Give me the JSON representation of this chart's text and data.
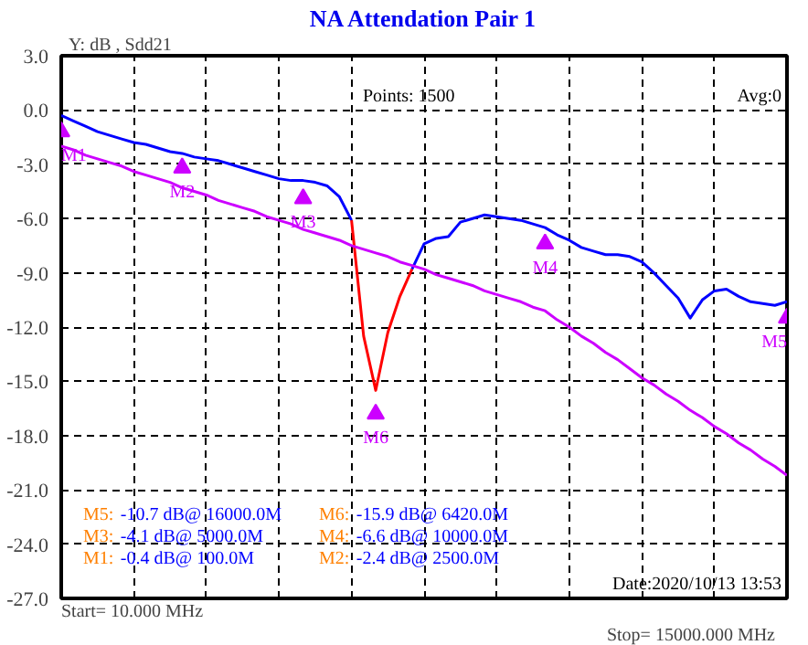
{
  "chart_data": {
    "type": "line",
    "title": "NA Attendation Pair 1",
    "ylabel": "Y: dB , Sdd21",
    "categories": [
      null,
      null,
      null,
      null,
      null,
      null,
      null,
      null,
      null,
      null,
      null,
      null,
      null,
      null,
      null,
      null,
      null,
      null,
      null,
      null,
      null,
      null,
      null,
      null,
      null,
      null,
      null,
      null,
      null,
      null,
      null,
      null,
      null,
      null,
      null,
      null,
      null,
      null,
      null,
      null,
      null,
      null,
      null,
      null,
      null,
      null,
      null,
      null,
      null,
      null,
      null,
      null,
      null,
      null,
      null,
      null,
      null,
      null,
      null,
      null,
      null
    ],
    "ylim": [
      -27,
      3
    ],
    "yticks": [
      {
        "value": 3,
        "label": "3.0"
      },
      {
        "value": 0,
        "label": "0.0"
      },
      {
        "value": -3,
        "label": "-3.0"
      },
      {
        "value": -6,
        "label": "-6.0"
      },
      {
        "value": -9,
        "label": "-9.0"
      },
      {
        "value": -12,
        "label": "-12.0"
      },
      {
        "value": -15,
        "label": "-15.0"
      },
      {
        "value": -18,
        "label": "-18.0"
      },
      {
        "value": -21,
        "label": "-21.0"
      },
      {
        "value": -24,
        "label": "-24.0"
      },
      {
        "value": -27,
        "label": "-27.0"
      }
    ],
    "grid": true,
    "line_style": "solid",
    "tick_labels": "y",
    "series": [
      {
        "color": "#0000ff",
        "values": [
          -0.3,
          -0.6,
          -0.9,
          -1.2,
          -1.4,
          -1.6,
          -1.8,
          -1.9,
          -2.1,
          -2.3,
          -2.4,
          -2.6,
          -2.7,
          -2.8,
          -3.0,
          -3.2,
          -3.4,
          -3.6,
          -3.8,
          -3.9,
          -3.9,
          -4.0,
          -4.2,
          -4.8,
          -6.1,
          null,
          null,
          null,
          null,
          -8.8,
          -7.4,
          -7.1,
          -7.0,
          -6.2,
          -6.0,
          -5.8,
          -5.9,
          -6.0,
          -6.1,
          -6.3,
          -6.5,
          -6.9,
          -7.2,
          -7.6,
          -7.8,
          -8.0,
          -8.0,
          -8.1,
          -8.4,
          -9.0,
          -9.7,
          -10.4,
          -11.5,
          -10.5,
          -10.0,
          -9.9,
          -10.3,
          -10.6,
          -10.7,
          -10.8,
          -10.6
        ]
      },
      {
        "color": "#ff0000",
        "values": [
          null,
          null,
          null,
          null,
          null,
          null,
          null,
          null,
          null,
          null,
          null,
          null,
          null,
          null,
          null,
          null,
          null,
          null,
          null,
          null,
          null,
          null,
          null,
          null,
          -6.1,
          -12.5,
          -15.5,
          -12.3,
          -10.3,
          -8.8,
          null,
          null,
          null,
          null,
          null,
          null,
          null,
          null,
          null,
          null,
          null,
          null,
          null,
          null,
          null,
          null,
          null,
          null,
          null,
          null,
          null,
          null,
          null,
          null,
          null,
          null,
          null,
          null,
          null,
          null,
          null
        ]
      },
      {
        "color": "#cc00ff",
        "values": [
          -2.0,
          -2.2,
          -2.5,
          -2.7,
          -2.9,
          -3.1,
          -3.4,
          -3.6,
          -3.8,
          -4.0,
          -4.3,
          -4.5,
          -4.7,
          -5.0,
          -5.2,
          -5.4,
          -5.6,
          -5.9,
          -6.1,
          -6.3,
          -6.6,
          -6.8,
          -7.0,
          -7.2,
          -7.5,
          -7.7,
          -7.9,
          -8.1,
          -8.4,
          -8.6,
          -8.8,
          -9.1,
          -9.3,
          -9.5,
          -9.7,
          -10.0,
          -10.2,
          -10.4,
          -10.6,
          -10.9,
          -11.1,
          -11.6,
          -12.0,
          -12.5,
          -12.9,
          -13.4,
          -13.8,
          -14.3,
          -14.8,
          -15.2,
          -15.7,
          -16.1,
          -16.6,
          -17.0,
          -17.5,
          -17.9,
          -18.4,
          -18.8,
          -19.3,
          -19.7,
          -20.2
        ]
      },
      {
        "type": "scatter",
        "marker": "triangle",
        "color": "#cc00ff",
        "values": [
          -1.2,
          null,
          null,
          null,
          null,
          null,
          null,
          null,
          null,
          null,
          -3.2,
          null,
          null,
          null,
          null,
          null,
          null,
          null,
          null,
          null,
          -4.9,
          null,
          null,
          null,
          null,
          null,
          -16.8,
          null,
          null,
          null,
          null,
          null,
          null,
          null,
          null,
          null,
          null,
          null,
          null,
          null,
          -7.4,
          null,
          null,
          null,
          null,
          null,
          null,
          null,
          null,
          null,
          null,
          null,
          null,
          null,
          null,
          null,
          null,
          null,
          null,
          null,
          -11.5
        ],
        "value_labels": [
          "M1",
          null,
          null,
          null,
          null,
          null,
          null,
          null,
          null,
          null,
          "M2",
          null,
          null,
          null,
          null,
          null,
          null,
          null,
          null,
          null,
          "M3",
          null,
          null,
          null,
          null,
          null,
          "M6",
          null,
          null,
          null,
          null,
          null,
          null,
          null,
          null,
          null,
          null,
          null,
          null,
          null,
          "M4",
          null,
          null,
          null,
          null,
          null,
          null,
          null,
          null,
          null,
          null,
          null,
          null,
          null,
          null,
          null,
          null,
          null,
          null,
          null,
          "M5"
        ]
      }
    ],
    "annotations": [
      "M5: -10.7 dB@ 16000.0M",
      "M3: -4.1 dB@ 5000.0M",
      "M1: -0.4 dB@ 100.0M",
      "M6: -15.9 dB@ 6420.0M",
      "M4: -6.6 dB@ 10000.0M",
      "M2: -2.4 dB@ 2500.0M",
      "Points: 1500",
      "Avg:0",
      "Date:2020/10/13 13:53",
      "Start= 10.000 MHz",
      "Stop=  15000.000 MHz"
    ]
  }
}
